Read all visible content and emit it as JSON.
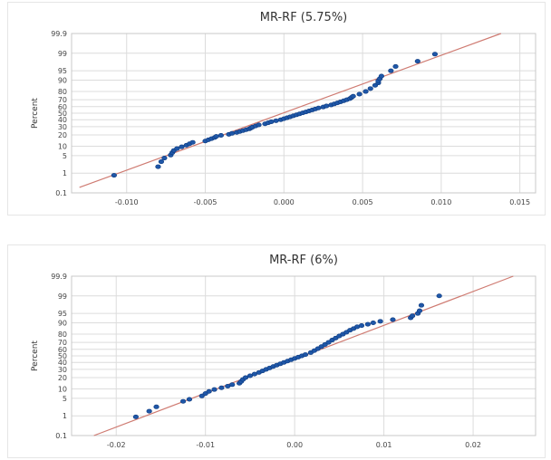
{
  "chart_data": [
    {
      "type": "scatter",
      "title": "MR-RF (5.75%)",
      "xlabel": "",
      "ylabel": "Percent",
      "xlim": [
        -0.0135,
        0.016
      ],
      "ylim": [
        0.1,
        99.9
      ],
      "y_scale": "normal-probability",
      "x_ticks": [
        -0.01,
        -0.005,
        0.0,
        0.005,
        0.01,
        0.015
      ],
      "x_tick_labels": [
        "-0.010",
        "-0.005",
        "0.000",
        "0.005",
        "0.010",
        "0.015"
      ],
      "y_ticks": [
        0.1,
        1,
        5,
        10,
        20,
        30,
        40,
        50,
        60,
        70,
        80,
        90,
        95,
        99,
        99.9
      ],
      "y_tick_labels": [
        "0.1",
        "1",
        "5",
        "10",
        "20",
        "30",
        "40",
        "50",
        "60",
        "70",
        "80",
        "90",
        "95",
        "99",
        "99.9"
      ],
      "grid": true,
      "fit_line": {
        "x": [
          -0.013,
          0.0138
        ],
        "y": [
          0.2,
          99.9
        ]
      },
      "colors": {
        "points": "#1f57a8",
        "fit": "#cf7b72"
      },
      "points": {
        "x": [
          -0.0108,
          -0.008,
          -0.0078,
          -0.0076,
          -0.0072,
          -0.0071,
          -0.007,
          -0.0068,
          -0.0065,
          -0.0062,
          -0.006,
          -0.0058,
          -0.005,
          -0.0048,
          -0.0046,
          -0.0044,
          -0.0043,
          -0.004,
          -0.0035,
          -0.0033,
          -0.003,
          -0.0028,
          -0.0026,
          -0.0024,
          -0.0022,
          -0.0021,
          -0.002,
          -0.0018,
          -0.0016,
          -0.0012,
          -0.001,
          -0.0008,
          -0.0005,
          -0.0002,
          0.0,
          0.0002,
          0.0004,
          0.0006,
          0.0008,
          0.001,
          0.0012,
          0.0014,
          0.0016,
          0.0018,
          0.002,
          0.0022,
          0.0025,
          0.0027,
          0.003,
          0.0032,
          0.0034,
          0.0036,
          0.0038,
          0.004,
          0.0042,
          0.0043,
          0.0044,
          0.0048,
          0.0052,
          0.0055,
          0.0058,
          0.006,
          0.006,
          0.0061,
          0.0062,
          0.0068,
          0.0071,
          0.0085,
          0.0096
        ],
        "y": [
          0.8,
          1.9,
          3.0,
          4.1,
          5.2,
          6.3,
          7.4,
          8.5,
          9.6,
          10.7,
          11.8,
          12.9,
          14.0,
          15.1,
          16.2,
          17.3,
          18.4,
          19.5,
          20.6,
          21.7,
          22.8,
          23.9,
          25.0,
          26.1,
          27.2,
          28.3,
          29.4,
          31.0,
          32.5,
          34.0,
          35.5,
          37.0,
          38.5,
          40.0,
          41.5,
          43.0,
          44.5,
          46.0,
          47.5,
          49.0,
          50.5,
          52.0,
          53.5,
          55.0,
          56.5,
          58.0,
          59.5,
          61.0,
          62.5,
          64.0,
          65.5,
          67.0,
          68.5,
          70.0,
          71.5,
          73.0,
          74.5,
          77.0,
          80.0,
          83.0,
          86.0,
          88.0,
          89.5,
          91.0,
          92.5,
          95.0,
          96.5,
          97.8,
          98.9
        ]
      }
    },
    {
      "type": "scatter",
      "title": "MR-RF (6%)",
      "xlabel": "",
      "ylabel": "Percent",
      "xlim": [
        -0.025,
        0.027
      ],
      "ylim": [
        0.1,
        99.9
      ],
      "y_scale": "normal-probability",
      "x_ticks": [
        -0.02,
        -0.01,
        0.0,
        0.01,
        0.02
      ],
      "x_tick_labels": [
        "-0.02",
        "-0.01",
        "0.00",
        "0.01",
        "0.02"
      ],
      "y_ticks": [
        0.1,
        1,
        5,
        10,
        20,
        30,
        40,
        50,
        60,
        70,
        80,
        90,
        95,
        99,
        99.9
      ],
      "y_tick_labels": [
        "0.1",
        "1",
        "5",
        "10",
        "20",
        "30",
        "40",
        "50",
        "60",
        "70",
        "80",
        "90",
        "95",
        "99",
        "99.9"
      ],
      "grid": true,
      "fit_line": {
        "x": [
          -0.0225,
          0.0245
        ],
        "y": [
          0.1,
          99.9
        ]
      },
      "colors": {
        "points": "#1f57a8",
        "fit": "#cf7b72"
      },
      "points": {
        "x": [
          -0.0178,
          -0.0163,
          -0.0155,
          -0.0125,
          -0.0118,
          -0.0104,
          -0.01,
          -0.0096,
          -0.009,
          -0.0082,
          -0.0075,
          -0.007,
          -0.0062,
          -0.006,
          -0.0058,
          -0.0055,
          -0.005,
          -0.0045,
          -0.004,
          -0.0036,
          -0.0032,
          -0.0028,
          -0.0024,
          -0.002,
          -0.0016,
          -0.0012,
          -0.0008,
          -0.0004,
          0.0,
          0.0004,
          0.0008,
          0.0012,
          0.0018,
          0.0022,
          0.0026,
          0.003,
          0.0034,
          0.0038,
          0.0042,
          0.0046,
          0.005,
          0.0054,
          0.0058,
          0.0062,
          0.0066,
          0.007,
          0.0075,
          0.0082,
          0.0088,
          0.0096,
          0.011,
          0.013,
          0.0132,
          0.0138,
          0.014,
          0.0142,
          0.0162
        ],
        "y": [
          0.9,
          1.6,
          2.4,
          3.9,
          4.6,
          6.0,
          7.2,
          8.4,
          9.6,
          10.8,
          12.0,
          13.2,
          14.4,
          16.0,
          18.0,
          20.0,
          22.0,
          24.0,
          26.0,
          28.0,
          30.0,
          32.0,
          34.0,
          36.0,
          38.0,
          40.0,
          42.0,
          44.0,
          46.0,
          48.0,
          50.0,
          52.0,
          55.0,
          58.0,
          61.0,
          64.0,
          67.0,
          70.0,
          73.0,
          75.5,
          78.0,
          80.0,
          82.0,
          84.0,
          85.5,
          87.0,
          88.0,
          89.0,
          90.0,
          91.0,
          92.0,
          93.0,
          94.0,
          95.0,
          96.0,
          97.5,
          99.0
        ]
      }
    }
  ]
}
